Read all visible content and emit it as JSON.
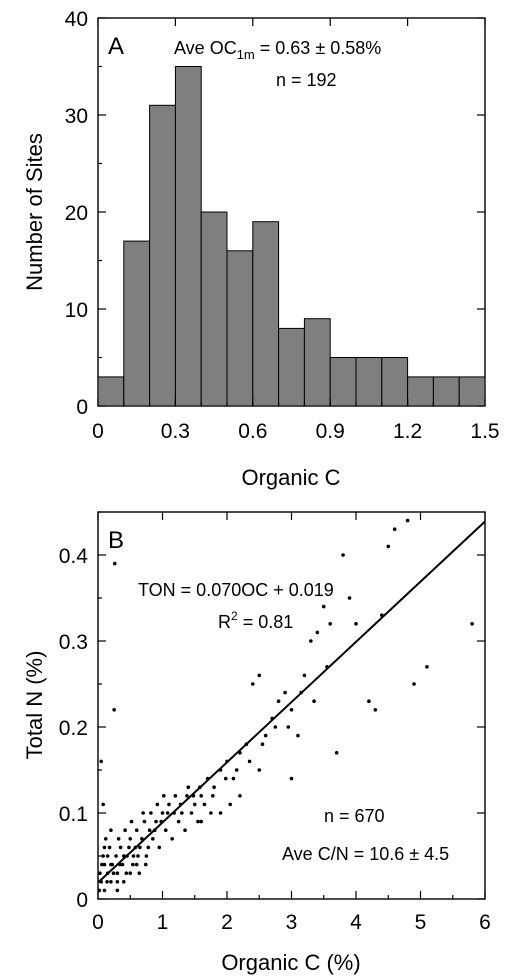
{
  "chart_data": [
    {
      "panel": "A",
      "type": "bar",
      "xlabel": "Organic C",
      "ylabel": "Number of Sites",
      "xlim": [
        0,
        1.5
      ],
      "ylim": [
        0,
        40
      ],
      "xticks": [
        "0",
        "0.3",
        "0.6",
        "0.9",
        "1.2",
        "1.5"
      ],
      "yticks": [
        "0",
        "10",
        "20",
        "30",
        "40"
      ],
      "bin_width": 0.1,
      "bins_left": [
        0.0,
        0.1,
        0.2,
        0.3,
        0.4,
        0.5,
        0.6,
        0.7,
        0.8,
        0.9,
        1.0,
        1.1,
        1.2,
        1.3,
        1.4
      ],
      "values": [
        3,
        17,
        31,
        35,
        20,
        16,
        19,
        8,
        9,
        5,
        5,
        5,
        3,
        3,
        3
      ],
      "bar_color": "#7f7f7f",
      "annotations": {
        "ave_prefix": "Ave OC",
        "ave_sub": "1m",
        "ave_suffix": " = 0.63 ± 0.58%",
        "n": "n = 192"
      }
    },
    {
      "panel": "B",
      "type": "scatter",
      "xlabel": "Organic C (%)",
      "ylabel": "Total N (%)",
      "xlim": [
        0,
        6
      ],
      "ylim": [
        0,
        0.45
      ],
      "xticks": [
        "0",
        "1",
        "2",
        "3",
        "4",
        "5",
        "6"
      ],
      "yticks": [
        "0",
        "0.1",
        "0.2",
        "0.3",
        "0.4"
      ],
      "fit": {
        "slope": 0.07,
        "intercept": 0.019
      },
      "annotations": {
        "equation": "TON = 0.070OC + 0.019",
        "r2_prefix": "R",
        "r2_sup": "2",
        "r2_suffix": " = 0.81",
        "n": "n = 670",
        "cn": "Ave C/N = 10.6 ± 4.5"
      },
      "points": [
        [
          0.26,
          0.39
        ],
        [
          0.25,
          0.22
        ],
        [
          0.05,
          0.16
        ],
        [
          0.08,
          0.11
        ],
        [
          0.1,
          0.06
        ],
        [
          0.15,
          0.05
        ],
        [
          0.2,
          0.04
        ],
        [
          0.3,
          0.03
        ],
        [
          0.4,
          0.05
        ],
        [
          0.5,
          0.07
        ],
        [
          0.6,
          0.08
        ],
        [
          0.45,
          0.05
        ],
        [
          0.35,
          0.06
        ],
        [
          0.55,
          0.05
        ],
        [
          0.65,
          0.06
        ],
        [
          0.7,
          0.1
        ],
        [
          0.8,
          0.08
        ],
        [
          0.9,
          0.09
        ],
        [
          1.0,
          0.1
        ],
        [
          1.1,
          0.11
        ],
        [
          1.2,
          0.12
        ],
        [
          1.3,
          0.1
        ],
        [
          1.4,
          0.13
        ],
        [
          1.5,
          0.11
        ],
        [
          1.6,
          0.12
        ],
        [
          1.7,
          0.14
        ],
        [
          1.8,
          0.13
        ],
        [
          1.9,
          0.15
        ],
        [
          2.0,
          0.16
        ],
        [
          2.1,
          0.14
        ],
        [
          2.2,
          0.17
        ],
        [
          2.3,
          0.18
        ],
        [
          2.4,
          0.25
        ],
        [
          2.5,
          0.26
        ],
        [
          2.6,
          0.19
        ],
        [
          2.7,
          0.21
        ],
        [
          2.8,
          0.23
        ],
        [
          2.9,
          0.24
        ],
        [
          3.0,
          0.22
        ],
        [
          3.1,
          0.19
        ],
        [
          3.2,
          0.26
        ],
        [
          3.3,
          0.3
        ],
        [
          3.4,
          0.31
        ],
        [
          3.5,
          0.34
        ],
        [
          3.6,
          0.32
        ],
        [
          3.7,
          0.17
        ],
        [
          3.8,
          0.4
        ],
        [
          3.9,
          0.35
        ],
        [
          4.0,
          0.32
        ],
        [
          4.2,
          0.23
        ],
        [
          4.3,
          0.22
        ],
        [
          4.4,
          0.33
        ],
        [
          4.5,
          0.41
        ],
        [
          4.6,
          0.43
        ],
        [
          4.8,
          0.44
        ],
        [
          4.9,
          0.25
        ],
        [
          5.1,
          0.27
        ],
        [
          5.8,
          0.32
        ],
        [
          3.0,
          0.14
        ],
        [
          2.5,
          0.15
        ],
        [
          1.9,
          0.1
        ],
        [
          2.2,
          0.12
        ],
        [
          1.6,
          0.09
        ],
        [
          0.3,
          0.01
        ],
        [
          0.2,
          0.02
        ],
        [
          0.1,
          0.01
        ],
        [
          0.05,
          0.02
        ],
        [
          0.4,
          0.02
        ],
        [
          0.6,
          0.04
        ],
        [
          0.75,
          0.05
        ],
        [
          0.85,
          0.07
        ],
        [
          1.05,
          0.08
        ],
        [
          1.25,
          0.09
        ],
        [
          1.45,
          0.1
        ],
        [
          1.65,
          0.11
        ],
        [
          0.95,
          0.06
        ],
        [
          0.5,
          0.03
        ],
        [
          0.3,
          0.02
        ],
        [
          0.15,
          0.03
        ],
        [
          0.22,
          0.04
        ],
        [
          0.28,
          0.05
        ],
        [
          0.38,
          0.04
        ],
        [
          0.48,
          0.06
        ],
        [
          0.58,
          0.06
        ],
        [
          0.68,
          0.07
        ],
        [
          0.78,
          0.06
        ],
        [
          0.88,
          0.08
        ],
        [
          0.98,
          0.09
        ],
        [
          1.08,
          0.1
        ],
        [
          1.18,
          0.1
        ],
        [
          1.28,
          0.11
        ],
        [
          1.38,
          0.12
        ],
        [
          1.48,
          0.12
        ],
        [
          1.58,
          0.13
        ],
        [
          1.78,
          0.12
        ],
        [
          1.98,
          0.14
        ],
        [
          2.15,
          0.15
        ],
        [
          2.35,
          0.16
        ],
        [
          2.55,
          0.18
        ],
        [
          2.75,
          0.2
        ],
        [
          2.95,
          0.2
        ],
        [
          3.15,
          0.24
        ],
        [
          3.35,
          0.23
        ],
        [
          3.55,
          0.27
        ],
        [
          0.1,
          0.04
        ],
        [
          0.18,
          0.06
        ],
        [
          0.32,
          0.07
        ],
        [
          0.42,
          0.08
        ],
        [
          0.52,
          0.09
        ],
        [
          0.62,
          0.05
        ],
        [
          0.72,
          0.09
        ],
        [
          0.82,
          0.1
        ],
        [
          0.92,
          0.11
        ],
        [
          1.02,
          0.12
        ],
        [
          0.12,
          0.07
        ],
        [
          0.2,
          0.08
        ],
        [
          0.08,
          0.05
        ],
        [
          0.02,
          0.01
        ],
        [
          0.03,
          0.03
        ],
        [
          0.06,
          0.04
        ],
        [
          0.14,
          0.02
        ],
        [
          0.24,
          0.03
        ],
        [
          0.34,
          0.04
        ],
        [
          0.44,
          0.03
        ],
        [
          0.54,
          0.04
        ],
        [
          0.64,
          0.03
        ],
        [
          0.74,
          0.04
        ],
        [
          1.15,
          0.07
        ],
        [
          1.35,
          0.08
        ],
        [
          1.55,
          0.09
        ],
        [
          1.75,
          0.1
        ],
        [
          2.05,
          0.11
        ]
      ]
    }
  ]
}
